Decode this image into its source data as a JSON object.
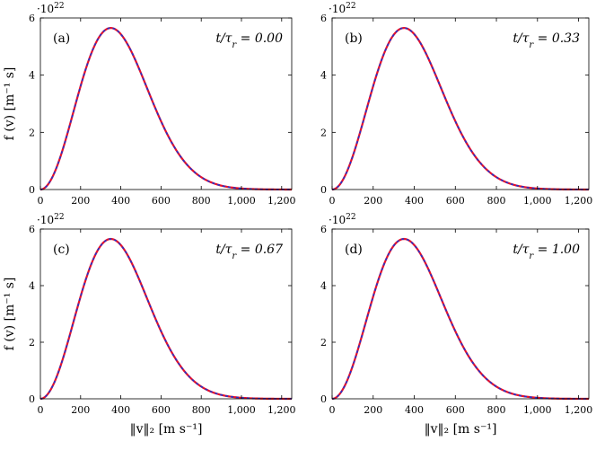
{
  "chart_data": [
    {
      "type": "line",
      "panel_label": "(a)",
      "time_label": "t/τ_r = 0.00",
      "y_multiplier": "·10^22",
      "xlabel": "",
      "ylabel": "f (v) [m⁻¹ s]",
      "xlim": [
        0,
        1250
      ],
      "ylim": [
        0,
        6
      ],
      "x_ticks": [
        "0",
        "200",
        "400",
        "600",
        "800",
        "1,000",
        "1,200"
      ],
      "y_ticks": [
        "0",
        "2",
        "4",
        "6"
      ],
      "peak": {
        "x": 350,
        "y": 5.65
      },
      "series": [
        {
          "name": "",
          "color": "#e8102a",
          "style": "solid"
        },
        {
          "name": "",
          "color": "#2233cc",
          "style": "dashed"
        }
      ]
    },
    {
      "type": "line",
      "panel_label": "(b)",
      "time_label": "t/τ_r = 0.33",
      "y_multiplier": "·10^22",
      "xlabel": "",
      "ylabel": "",
      "xlim": [
        0,
        1250
      ],
      "ylim": [
        0,
        6
      ],
      "x_ticks": [
        "0",
        "200",
        "400",
        "600",
        "800",
        "1,000",
        "1,200"
      ],
      "y_ticks": [
        "0",
        "2",
        "4",
        "6"
      ],
      "peak": {
        "x": 350,
        "y": 5.65
      },
      "series": [
        {
          "name": "",
          "color": "#e8102a",
          "style": "solid"
        },
        {
          "name": "",
          "color": "#2233cc",
          "style": "dashed"
        }
      ]
    },
    {
      "type": "line",
      "panel_label": "(c)",
      "time_label": "t/τ_r = 0.67",
      "y_multiplier": "·10^22",
      "xlabel": "‖v‖₂ [m s⁻¹]",
      "ylabel": "f (v) [m⁻¹ s]",
      "xlim": [
        0,
        1250
      ],
      "ylim": [
        0,
        6
      ],
      "x_ticks": [
        "0",
        "200",
        "400",
        "600",
        "800",
        "1,000",
        "1,200"
      ],
      "y_ticks": [
        "0",
        "2",
        "4",
        "6"
      ],
      "peak": {
        "x": 350,
        "y": 5.65
      },
      "series": [
        {
          "name": "",
          "color": "#e8102a",
          "style": "solid"
        },
        {
          "name": "",
          "color": "#2233cc",
          "style": "dashed"
        }
      ]
    },
    {
      "type": "line",
      "panel_label": "(d)",
      "time_label": "t/τ_r = 1.00",
      "y_multiplier": "·10^22",
      "xlabel": "‖v‖₂ [m s⁻¹]",
      "ylabel": "",
      "xlim": [
        0,
        1250
      ],
      "ylim": [
        0,
        6
      ],
      "x_ticks": [
        "0",
        "200",
        "400",
        "600",
        "800",
        "1,000",
        "1,200"
      ],
      "y_ticks": [
        "0",
        "2",
        "4",
        "6"
      ],
      "peak": {
        "x": 350,
        "y": 5.65
      },
      "series": [
        {
          "name": "",
          "color": "#e8102a",
          "style": "solid"
        },
        {
          "name": "",
          "color": "#2233cc",
          "style": "dashed"
        }
      ]
    }
  ]
}
